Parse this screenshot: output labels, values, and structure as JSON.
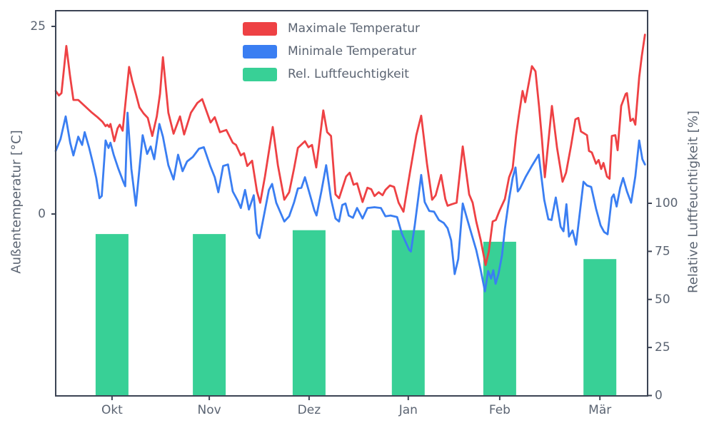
{
  "figure": {
    "background": "#ffffff",
    "plot_border_color": "#3c4454",
    "text_color": "#5b6472"
  },
  "legend": {
    "items": [
      {
        "label": "Maximale Temperatur",
        "color": "#ee4144"
      },
      {
        "label": "Minimale Temperatur",
        "color": "#3a7ef2"
      },
      {
        "label": "Rel. Luftfeuchtigkeit",
        "color": "#38d096"
      }
    ]
  },
  "axes": {
    "left": {
      "label": "Außentemperatur [°C]",
      "tick_labels": [
        "25",
        "0"
      ],
      "tick_values": [
        25,
        0
      ]
    },
    "right": {
      "label": "Relative Luftfeuchtigkeit [%]",
      "tick_labels": [
        "0",
        "25",
        "50",
        "75",
        "100"
      ],
      "tick_values": [
        0,
        25,
        50,
        75,
        100
      ]
    },
    "x": {
      "tick_labels": [
        "Okt",
        "Nov",
        "Dez",
        "Jan",
        "Feb",
        "Mär"
      ],
      "tick_days": [
        17.5,
        47.7,
        78.7,
        109.5,
        137.9,
        169.0
      ]
    }
  },
  "chart_data": {
    "type": "line+bar",
    "x_unit": "day (approx. late Sep to late Mar, daily values)",
    "ylim_left": [
      -24,
      27
    ],
    "ylim_right": [
      0,
      200
    ],
    "ylabel_left": "Außentemperatur [°C]",
    "ylabel_right": "Relative Luftfeuchtigkeit [%]",
    "grid": false,
    "legend_position": "upper center",
    "series": [
      {
        "name": "Maximale Temperatur",
        "type": "line",
        "axis": "left",
        "color": "#ee4144",
        "points": [
          [
            0,
            16.4
          ],
          [
            1,
            15.8
          ],
          [
            1.8,
            16.1
          ],
          [
            3.3,
            22.4
          ],
          [
            4.4,
            18.6
          ],
          [
            5.5,
            15.2
          ],
          [
            7,
            15.2
          ],
          [
            9,
            14.4
          ],
          [
            11,
            13.6
          ],
          [
            13,
            12.9
          ],
          [
            14.5,
            12.3
          ],
          [
            15.5,
            11.7
          ],
          [
            16,
            11.9
          ],
          [
            16.6,
            11.6
          ],
          [
            17,
            12.0
          ],
          [
            18.2,
            9.7
          ],
          [
            19.2,
            11.4
          ],
          [
            19.9,
            11.9
          ],
          [
            20.8,
            11.1
          ],
          [
            22.8,
            19.6
          ],
          [
            23.8,
            17.7
          ],
          [
            24.9,
            16.0
          ],
          [
            26,
            14.2
          ],
          [
            27.3,
            13.4
          ],
          [
            28.6,
            12.8
          ],
          [
            30,
            10.4
          ],
          [
            31.4,
            13.0
          ],
          [
            32.4,
            16.0
          ],
          [
            33.3,
            20.9
          ],
          [
            35,
            13.5
          ],
          [
            36.6,
            10.7
          ],
          [
            38.6,
            13.0
          ],
          [
            39.9,
            10.6
          ],
          [
            42,
            13.5
          ],
          [
            44,
            14.8
          ],
          [
            45.5,
            15.3
          ],
          [
            48.1,
            12.2
          ],
          [
            49.4,
            12.9
          ],
          [
            51,
            10.9
          ],
          [
            53,
            11.2
          ],
          [
            55,
            9.5
          ],
          [
            56,
            9.2
          ],
          [
            57.5,
            7.8
          ],
          [
            58.5,
            8.1
          ],
          [
            59.5,
            6.4
          ],
          [
            61,
            7.1
          ],
          [
            62.5,
            3.0
          ],
          [
            63.5,
            1.5
          ],
          [
            65,
            5.0
          ],
          [
            67.4,
            11.6
          ],
          [
            69,
            6.5
          ],
          [
            71,
            1.9
          ],
          [
            72.5,
            2.9
          ],
          [
            74,
            6.0
          ],
          [
            75.2,
            8.8
          ],
          [
            77.4,
            9.7
          ],
          [
            78.5,
            8.9
          ],
          [
            79.6,
            9.2
          ],
          [
            80.9,
            6.2
          ],
          [
            83.1,
            13.8
          ],
          [
            84.3,
            10.9
          ],
          [
            85.5,
            10.4
          ],
          [
            86.9,
            2.6
          ],
          [
            88,
            2.1
          ],
          [
            90.2,
            5.0
          ],
          [
            91.3,
            5.5
          ],
          [
            92.5,
            3.9
          ],
          [
            93.6,
            4.1
          ],
          [
            95.3,
            1.6
          ],
          [
            96.8,
            3.5
          ],
          [
            98,
            3.3
          ],
          [
            99,
            2.4
          ],
          [
            100.3,
            2.9
          ],
          [
            101.5,
            2.5
          ],
          [
            102.4,
            3.2
          ],
          [
            103.8,
            3.8
          ],
          [
            105.1,
            3.6
          ],
          [
            106.5,
            1.5
          ],
          [
            108,
            0.3
          ],
          [
            110,
            5.5
          ],
          [
            112,
            10.5
          ],
          [
            113.5,
            13.1
          ],
          [
            115.3,
            6.7
          ],
          [
            116.9,
            1.9
          ],
          [
            118,
            2.5
          ],
          [
            119.7,
            5.2
          ],
          [
            121,
            2.0
          ],
          [
            121.7,
            1.1
          ],
          [
            123,
            1.3
          ],
          [
            124.5,
            1.5
          ],
          [
            126.4,
            9.0
          ],
          [
            128.4,
            2.6
          ],
          [
            129.5,
            1.5
          ],
          [
            130.6,
            -1.0
          ],
          [
            132,
            -3.5
          ],
          [
            133.5,
            -6.8
          ],
          [
            134.5,
            -5.0
          ],
          [
            135.7,
            -1.0
          ],
          [
            136.7,
            -0.8
          ],
          [
            137.9,
            0.5
          ],
          [
            139.5,
            2.0
          ],
          [
            140.8,
            4.9
          ],
          [
            141.9,
            6.1
          ],
          [
            143,
            10.5
          ],
          [
            143.8,
            13.0
          ],
          [
            145,
            16.4
          ],
          [
            145.8,
            14.9
          ],
          [
            147.9,
            19.7
          ],
          [
            149,
            19.0
          ],
          [
            150.1,
            14.3
          ],
          [
            151,
            10.0
          ],
          [
            151.9,
            4.9
          ],
          [
            154.1,
            14.4
          ],
          [
            155.7,
            8.8
          ],
          [
            157.4,
            4.3
          ],
          [
            158.5,
            5.5
          ],
          [
            160,
            9.0
          ],
          [
            161.4,
            12.6
          ],
          [
            162.3,
            12.8
          ],
          [
            163.1,
            11.0
          ],
          [
            163.9,
            10.8
          ],
          [
            165,
            10.5
          ],
          [
            165.6,
            8.4
          ],
          [
            166.5,
            8.2
          ],
          [
            167.8,
            6.7
          ],
          [
            168.6,
            7.2
          ],
          [
            169.4,
            6.0
          ],
          [
            170.1,
            6.8
          ],
          [
            171.2,
            5.0
          ],
          [
            172,
            4.7
          ],
          [
            172.7,
            10.4
          ],
          [
            173.8,
            10.5
          ],
          [
            174.5,
            8.5
          ],
          [
            175.6,
            14.4
          ],
          [
            177,
            16.0
          ],
          [
            177.4,
            16.1
          ],
          [
            178.5,
            12.4
          ],
          [
            179.3,
            12.7
          ],
          [
            180,
            11.9
          ],
          [
            181.2,
            18.2
          ],
          [
            182,
            21.0
          ],
          [
            183,
            23.9
          ]
        ]
      },
      {
        "name": "Minimale Temperatur",
        "type": "line",
        "axis": "left",
        "color": "#3a7ef2",
        "points": [
          [
            0,
            8.4
          ],
          [
            1.5,
            10.0
          ],
          [
            3.1,
            13.0
          ],
          [
            4.5,
            9.5
          ],
          [
            5.5,
            7.8
          ],
          [
            7,
            10.3
          ],
          [
            8.2,
            9.2
          ],
          [
            9,
            10.9
          ],
          [
            10.4,
            8.8
          ],
          [
            11.6,
            6.7
          ],
          [
            12.6,
            4.8
          ],
          [
            13.6,
            2.1
          ],
          [
            14.3,
            2.4
          ],
          [
            15.5,
            9.8
          ],
          [
            16.4,
            8.8
          ],
          [
            17,
            9.5
          ],
          [
            18,
            7.9
          ],
          [
            19.5,
            6.0
          ],
          [
            21,
            4.3
          ],
          [
            21.6,
            3.7
          ],
          [
            22.3,
            13.5
          ],
          [
            23.5,
            6.0
          ],
          [
            24.9,
            1.1
          ],
          [
            27,
            10.5
          ],
          [
            28.4,
            8.0
          ],
          [
            29.5,
            9.0
          ],
          [
            30.6,
            7.3
          ],
          [
            32.2,
            12.0
          ],
          [
            33.3,
            10.3
          ],
          [
            35,
            6.5
          ],
          [
            36.6,
            4.6
          ],
          [
            38,
            7.9
          ],
          [
            39.4,
            5.7
          ],
          [
            40.8,
            7.0
          ],
          [
            42.6,
            7.6
          ],
          [
            44.5,
            8.7
          ],
          [
            46,
            8.9
          ],
          [
            48,
            6.4
          ],
          [
            49.4,
            4.9
          ],
          [
            50.5,
            2.9
          ],
          [
            52,
            6.4
          ],
          [
            53.5,
            6.6
          ],
          [
            55,
            3.0
          ],
          [
            56.5,
            1.8
          ],
          [
            57.5,
            0.8
          ],
          [
            58.8,
            3.2
          ],
          [
            60,
            0.6
          ],
          [
            61.5,
            2.5
          ],
          [
            62.5,
            -2.6
          ],
          [
            63.3,
            -3.2
          ],
          [
            65,
            0.5
          ],
          [
            66.2,
            3.2
          ],
          [
            67.2,
            4.0
          ],
          [
            68.5,
            1.5
          ],
          [
            71,
            -1.0
          ],
          [
            72.5,
            -0.3
          ],
          [
            74,
            1.5
          ],
          [
            75.2,
            3.4
          ],
          [
            76.3,
            3.5
          ],
          [
            77.4,
            4.9
          ],
          [
            79,
            2.5
          ],
          [
            80.3,
            0.5
          ],
          [
            81,
            -0.2
          ],
          [
            82.5,
            3.0
          ],
          [
            84,
            6.5
          ],
          [
            85.5,
            2.0
          ],
          [
            86.9,
            -0.6
          ],
          [
            88,
            -1.0
          ],
          [
            89,
            1.2
          ],
          [
            90,
            1.4
          ],
          [
            91,
            -0.2
          ],
          [
            92.3,
            -0.5
          ],
          [
            93.6,
            0.8
          ],
          [
            95.3,
            -0.6
          ],
          [
            96.8,
            0.8
          ],
          [
            99,
            0.9
          ],
          [
            101,
            0.8
          ],
          [
            102.4,
            -0.3
          ],
          [
            104,
            -0.2
          ],
          [
            106,
            -0.4
          ],
          [
            107.5,
            -2.6
          ],
          [
            109.8,
            -4.8
          ],
          [
            110.3,
            -5.0
          ],
          [
            111.5,
            -1.5
          ],
          [
            113.5,
            5.2
          ],
          [
            114.6,
            1.6
          ],
          [
            116,
            0.4
          ],
          [
            117.5,
            0.3
          ],
          [
            119,
            -0.8
          ],
          [
            120.5,
            -1.2
          ],
          [
            121.7,
            -1.9
          ],
          [
            122.8,
            -3.5
          ],
          [
            123.9,
            -8.0
          ],
          [
            125,
            -6.0
          ],
          [
            126.4,
            1.4
          ],
          [
            128,
            -1.0
          ],
          [
            128.4,
            -1.6
          ],
          [
            130.6,
            -4.8
          ],
          [
            131.9,
            -7.3
          ],
          [
            133.3,
            -10.3
          ],
          [
            134.3,
            -7.6
          ],
          [
            135.2,
            -8.6
          ],
          [
            135.9,
            -7.5
          ],
          [
            136.6,
            -9.3
          ],
          [
            137.5,
            -8.0
          ],
          [
            138.6,
            -5.5
          ],
          [
            139.5,
            -2.0
          ],
          [
            140.8,
            2.0
          ],
          [
            141.9,
            4.8
          ],
          [
            142.8,
            6.2
          ],
          [
            143.5,
            3.0
          ],
          [
            144.2,
            3.4
          ],
          [
            146,
            5.0
          ],
          [
            148,
            6.5
          ],
          [
            150,
            7.9
          ],
          [
            151.7,
            1.9
          ],
          [
            153,
            -0.7
          ],
          [
            154,
            -0.8
          ],
          [
            155.3,
            2.2
          ],
          [
            156.8,
            -1.7
          ],
          [
            157.7,
            -2.3
          ],
          [
            158.6,
            1.3
          ],
          [
            159.4,
            -3.0
          ],
          [
            160.5,
            -2.2
          ],
          [
            161.6,
            -4.1
          ],
          [
            163.9,
            4.3
          ],
          [
            165,
            3.8
          ],
          [
            166.3,
            3.6
          ],
          [
            167.8,
            0.7
          ],
          [
            169.2,
            -1.5
          ],
          [
            170.3,
            -2.4
          ],
          [
            171.4,
            -2.7
          ],
          [
            172.7,
            2.2
          ],
          [
            173.3,
            2.6
          ],
          [
            174.2,
            1.0
          ],
          [
            175.3,
            3.5
          ],
          [
            176.2,
            4.8
          ],
          [
            177.4,
            3.0
          ],
          [
            178.7,
            1.5
          ],
          [
            180,
            5.0
          ],
          [
            181.2,
            9.8
          ],
          [
            182.2,
            7.3
          ],
          [
            183,
            6.6
          ]
        ]
      },
      {
        "name": "Rel. Luftfeuchtigkeit",
        "type": "bar",
        "axis": "right",
        "color": "#38d096",
        "categories": [
          "Okt",
          "Nov",
          "Dez",
          "Jan",
          "Feb",
          "Mär"
        ],
        "center_days": [
          17.5,
          47.7,
          78.7,
          109.5,
          137.9,
          169.0
        ],
        "values": [
          84,
          84,
          86,
          86,
          80,
          71
        ],
        "bar_width_days": 10.2
      }
    ]
  }
}
